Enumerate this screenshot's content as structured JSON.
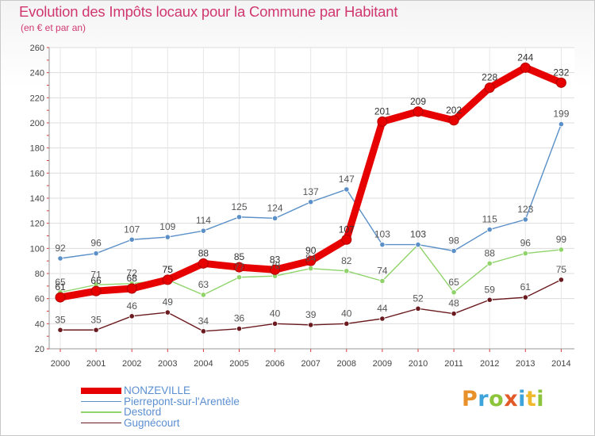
{
  "chart_data": {
    "type": "line",
    "title": "Evolution des Impôts locaux pour la Commune par Habitant",
    "subtitle": "(en € et par an)",
    "xlabel": "",
    "ylabel": "",
    "ylim": [
      20,
      260
    ],
    "y_ticks": [
      "20",
      "40",
      "60",
      "80",
      "100",
      "120",
      "140",
      "160",
      "180",
      "200",
      "220",
      "240",
      "260"
    ],
    "x": [
      "2000",
      "2001",
      "2002",
      "2003",
      "2004",
      "2005",
      "2006",
      "2007",
      "2008",
      "2009",
      "2010",
      "2011",
      "2012",
      "2013",
      "2014"
    ],
    "grid": true,
    "legend_position": "bottom-left",
    "series": [
      {
        "name": "Gugnécourt",
        "color": "#6b1b1f",
        "values": [
          35,
          35,
          46,
          49,
          34,
          36,
          40,
          39,
          40,
          44,
          52,
          48,
          59,
          61,
          75
        ],
        "labels": [
          "35",
          "35",
          "46",
          "49",
          "34",
          "36",
          "40",
          "39",
          "40",
          "44",
          "52",
          "48",
          "59",
          "61",
          "75"
        ]
      },
      {
        "name": "Destord",
        "color": "#8fd36a",
        "values": [
          65,
          71,
          72,
          75,
          63,
          77,
          78,
          84,
          82,
          74,
          103,
          65,
          88,
          96,
          99
        ],
        "labels": [
          "65",
          "71",
          "72",
          "75",
          "63",
          "77",
          "78",
          "84",
          "82",
          "74",
          "103",
          "65",
          "88",
          "96",
          "99"
        ]
      },
      {
        "name": "Pierrepont-sur-l'Arentèle",
        "color": "#5a8fc7",
        "values": [
          92,
          96,
          107,
          109,
          114,
          125,
          124,
          137,
          147,
          103,
          103,
          98,
          115,
          123,
          199
        ],
        "labels": [
          "92",
          "96",
          "107",
          "109",
          "114",
          "125",
          "124",
          "137",
          "147",
          "103",
          "103",
          "98",
          "115",
          "123",
          "199"
        ]
      },
      {
        "name": "NONZEVILLE",
        "color": "#e60000",
        "values": [
          61,
          66,
          68,
          75,
          88,
          85,
          83,
          90,
          107,
          201,
          209,
          202,
          228,
          244,
          232
        ],
        "labels": [
          "61",
          "66",
          "68",
          "75",
          "88",
          "85",
          "83",
          "90",
          "107",
          "201",
          "209",
          "202",
          "228",
          "244",
          "232"
        ]
      }
    ],
    "legend_order": [
      "NONZEVILLE",
      "Pierrepont-sur-l'Arentèle",
      "Destord",
      "Gugnécourt"
    ]
  },
  "legend": {
    "items": [
      {
        "label": "NONZEVILLE",
        "color": "#e60000"
      },
      {
        "label": "Pierrepont-sur-l'Arentèle",
        "color": "#5a8fc7"
      },
      {
        "label": "Destord",
        "color": "#8fd36a"
      },
      {
        "label": "Gugnécourt",
        "color": "#6b1b1f"
      }
    ]
  },
  "logo": {
    "letters": [
      "P",
      "r",
      "o",
      "x",
      "i",
      "t",
      "i"
    ]
  }
}
